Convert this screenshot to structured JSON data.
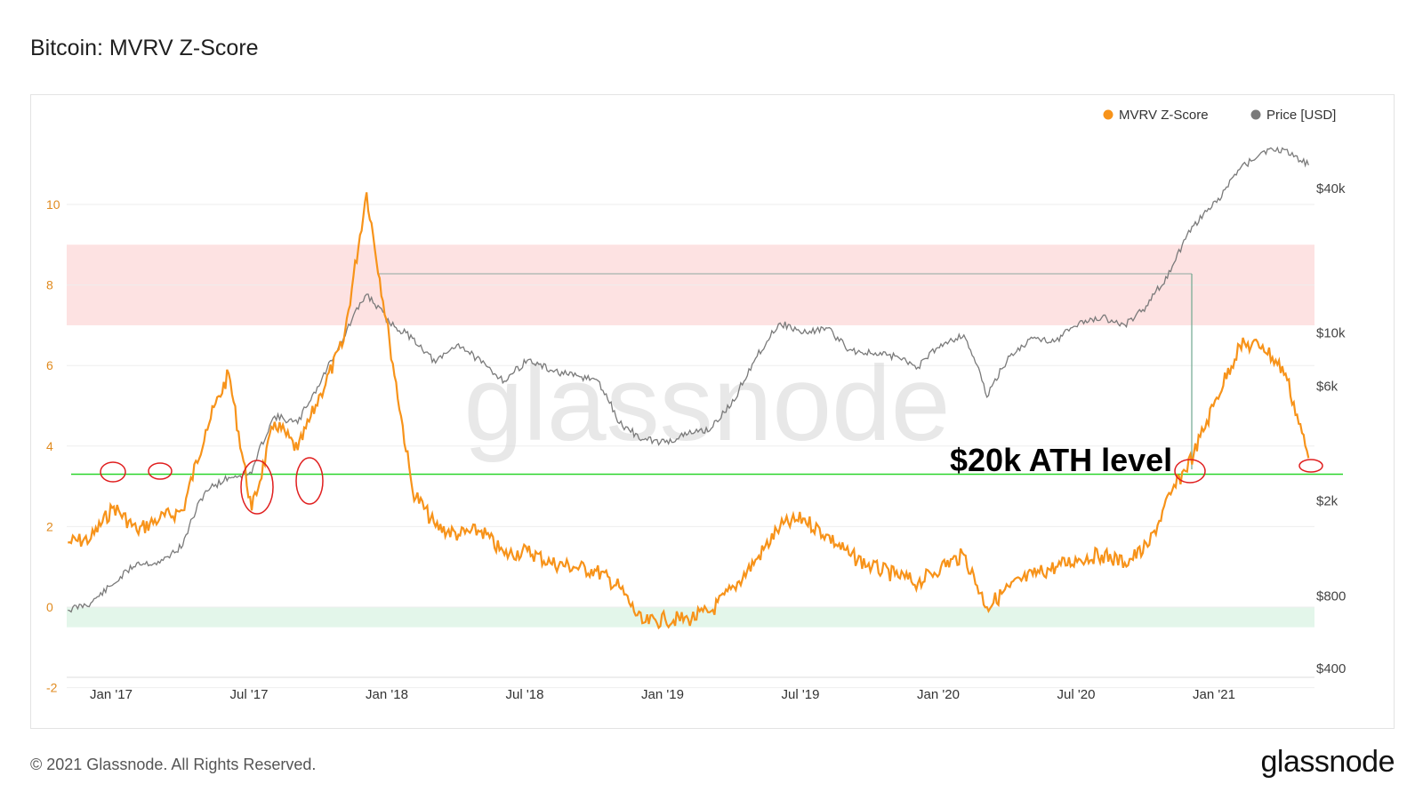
{
  "title": "Bitcoin: MVRV Z-Score",
  "footer": {
    "copyright": "© 2021 Glassnode. All Rights Reserved.",
    "logo": "glassnode"
  },
  "watermark": "glassnode",
  "annotation": "$20k ATH level",
  "colors": {
    "mvrv": "#f7931a",
    "price": "#7a7a7a",
    "red_band": "#fde2e2",
    "green_band": "#e3f6ea",
    "ath_line": "#2bd52b",
    "circles": "#e01e1e"
  },
  "chart_data": {
    "type": "line",
    "title": "Bitcoin: MVRV Z-Score",
    "legend": {
      "placement": "top-right",
      "items": [
        "MVRV Z-Score",
        "Price [USD]"
      ]
    },
    "x_ticks": [
      "Jan '17",
      "Jul '17",
      "Jan '18",
      "Jul '18",
      "Jan '19",
      "Jul '19",
      "Jan '20",
      "Jul '20",
      "Jan '21"
    ],
    "y_left": {
      "label": "",
      "range": [
        -2,
        11.5
      ],
      "ticks": [
        "-2",
        "0",
        "2",
        "4",
        "6",
        "8",
        "10"
      ]
    },
    "y_right": {
      "label": "",
      "scale": "log",
      "ticks": [
        "$400",
        "$800",
        "$2k",
        "$6k",
        "$10k",
        "$40k"
      ]
    },
    "bands": [
      {
        "name": "red",
        "y_from": 7,
        "y_to": 9
      },
      {
        "name": "green",
        "y_from": -0.5,
        "y_to": 0
      }
    ],
    "reference_lines": [
      {
        "type": "horizontal",
        "y": 3.3,
        "label": "$20k ATH level"
      }
    ],
    "x": [
      "2016-11",
      "2016-12",
      "2017-01",
      "2017-02",
      "2017-03",
      "2017-04",
      "2017-05",
      "2017-06",
      "2017-07",
      "2017-08",
      "2017-09",
      "2017-10",
      "2017-11",
      "2017-12",
      "2018-01",
      "2018-02",
      "2018-03",
      "2018-04",
      "2018-05",
      "2018-06",
      "2018-07",
      "2018-08",
      "2018-09",
      "2018-10",
      "2018-11",
      "2018-12",
      "2019-01",
      "2019-02",
      "2019-03",
      "2019-04",
      "2019-05",
      "2019-06",
      "2019-07",
      "2019-08",
      "2019-09",
      "2019-10",
      "2019-11",
      "2019-12",
      "2020-01",
      "2020-02",
      "2020-03",
      "2020-04",
      "2020-05",
      "2020-06",
      "2020-07",
      "2020-08",
      "2020-09",
      "2020-10",
      "2020-11",
      "2020-12",
      "2021-01",
      "2021-02",
      "2021-03",
      "2021-04",
      "2021-05"
    ],
    "series": [
      {
        "name": "MVRV Z-Score",
        "values": [
          1.6,
          1.7,
          2.5,
          1.9,
          2.2,
          2.4,
          4.4,
          5.8,
          2.4,
          4.6,
          3.9,
          5.3,
          6.6,
          10.3,
          6.6,
          2.9,
          2.0,
          1.8,
          1.9,
          1.3,
          1.4,
          1.1,
          1.0,
          0.9,
          0.5,
          -0.4,
          -0.3,
          -0.3,
          -0.1,
          0.5,
          1.2,
          2.0,
          2.2,
          1.8,
          1.3,
          1.0,
          0.8,
          0.6,
          1.0,
          1.3,
          0.0,
          0.5,
          0.8,
          1.0,
          1.2,
          1.3,
          1.1,
          1.5,
          2.8,
          3.8,
          5.2,
          6.5,
          6.5,
          5.8,
          3.7
        ]
      },
      {
        "name": "Price [USD]",
        "values": [
          700,
          750,
          900,
          1100,
          1100,
          1300,
          2200,
          2500,
          2600,
          4500,
          4200,
          6200,
          9500,
          14500,
          11000,
          9500,
          7500,
          9000,
          7500,
          6300,
          7700,
          7000,
          6600,
          6400,
          4200,
          3600,
          3500,
          3800,
          4000,
          5200,
          8000,
          11000,
          10000,
          10500,
          8500,
          8200,
          8000,
          7200,
          9000,
          9800,
          5400,
          8000,
          9500,
          9300,
          11000,
          11600,
          10800,
          13000,
          18000,
          28000,
          35000,
          48000,
          57000,
          58000,
          50000
        ]
      }
    ]
  }
}
